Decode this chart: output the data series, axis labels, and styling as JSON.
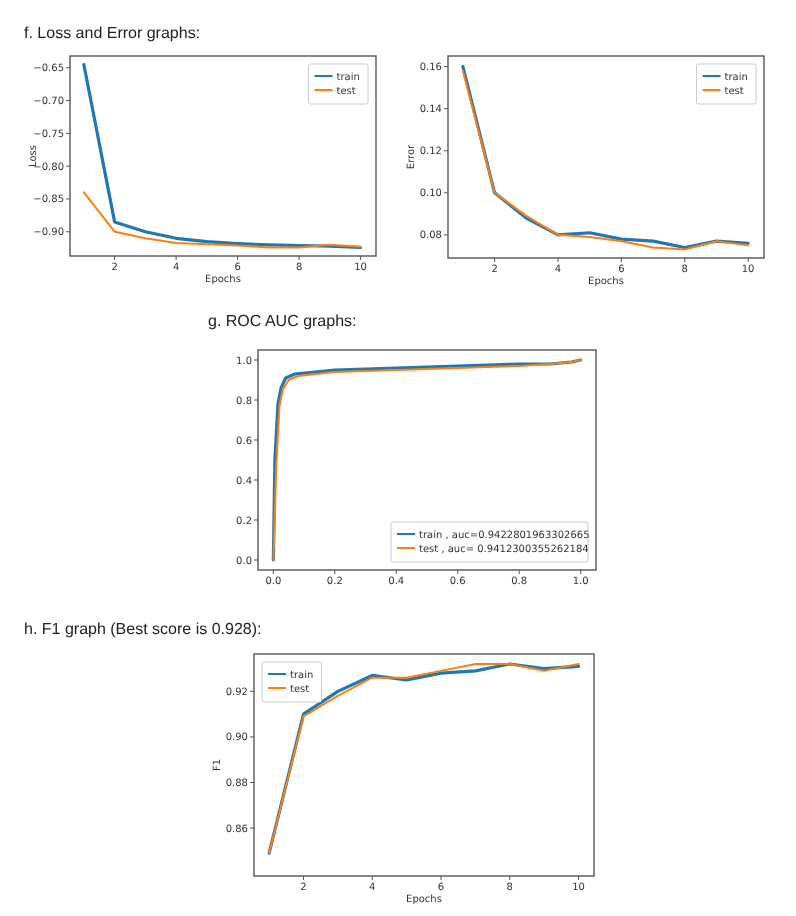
{
  "chart_data": [
    {
      "type": "line",
      "title": "f. Loss and Error graphs:",
      "xlabel": "Epochs",
      "ylabel": "Loss",
      "x": [
        1,
        2,
        3,
        4,
        5,
        6,
        7,
        8,
        9,
        10
      ],
      "xlim": [
        0.55,
        10.5
      ],
      "xticks": [
        2,
        4,
        6,
        8,
        10
      ],
      "ylim": [
        -0.937,
        -0.632
      ],
      "yticks": [
        {
          "value": -0.65,
          "label": "−0.65"
        },
        {
          "value": -0.7,
          "label": "−0.70"
        },
        {
          "value": -0.75,
          "label": "−0.75"
        },
        {
          "value": -0.8,
          "label": "−0.80"
        },
        {
          "value": -0.85,
          "label": "−0.85"
        },
        {
          "value": -0.9,
          "label": "−0.90"
        }
      ],
      "legend": "top right",
      "series": [
        {
          "name": "train",
          "color": "#1f77b4",
          "values": [
            -0.645,
            -0.885,
            -0.9,
            -0.91,
            -0.915,
            -0.918,
            -0.92,
            -0.921,
            -0.922,
            -0.924
          ]
        },
        {
          "name": "test",
          "color": "#ff7f0e",
          "values": [
            -0.84,
            -0.9,
            -0.91,
            -0.917,
            -0.919,
            -0.921,
            -0.924,
            -0.924,
            -0.92,
            -0.923
          ]
        }
      ]
    },
    {
      "type": "line",
      "xlabel": "Epochs",
      "ylabel": "Error",
      "x": [
        1,
        2,
        3,
        4,
        5,
        6,
        7,
        8,
        9,
        10
      ],
      "xlim": [
        0.53,
        10.5
      ],
      "xticks": [
        2,
        4,
        6,
        8,
        10
      ],
      "ylim": [
        0.069,
        0.165
      ],
      "yticks": [
        {
          "value": 0.08,
          "label": "0.08"
        },
        {
          "value": 0.1,
          "label": "0.10"
        },
        {
          "value": 0.12,
          "label": "0.12"
        },
        {
          "value": 0.14,
          "label": "0.14"
        },
        {
          "value": 0.16,
          "label": "0.16"
        }
      ],
      "legend": "top right",
      "series": [
        {
          "name": "train",
          "color": "#1f77b4",
          "values": [
            0.16,
            0.1,
            0.088,
            0.08,
            0.081,
            0.078,
            0.077,
            0.074,
            0.077,
            0.076
          ]
        },
        {
          "name": "test",
          "color": "#ff7f0e",
          "values": [
            0.158,
            0.1,
            0.089,
            0.08,
            0.079,
            0.077,
            0.074,
            0.073,
            0.077,
            0.075
          ]
        }
      ]
    },
    {
      "type": "line",
      "title": "g. ROC AUC graphs:",
      "xlim": [
        -0.05,
        1.05
      ],
      "xticks": [
        {
          "value": 0,
          "label": "0.0"
        },
        {
          "value": 0.2,
          "label": "0.2"
        },
        {
          "value": 0.4,
          "label": "0.4"
        },
        {
          "value": 0.6,
          "label": "0.6"
        },
        {
          "value": 0.8,
          "label": "0.8"
        },
        {
          "value": 1,
          "label": "1.0"
        }
      ],
      "ylim": [
        -0.05,
        1.05
      ],
      "yticks": [
        {
          "value": 0,
          "label": "0.0"
        },
        {
          "value": 0.2,
          "label": "0.2"
        },
        {
          "value": 0.4,
          "label": "0.4"
        },
        {
          "value": 0.6,
          "label": "0.6"
        },
        {
          "value": 0.8,
          "label": "0.8"
        },
        {
          "value": 1,
          "label": "1.0"
        }
      ],
      "legend": "bottom right",
      "series": [
        {
          "name": "train , auc=0.9422801963302665",
          "color": "#1f77b4",
          "x": [
            0,
            0.005,
            0.015,
            0.025,
            0.04,
            0.07,
            0.2,
            0.4,
            0.6,
            0.8,
            0.9,
            0.97,
            1
          ],
          "values": [
            0,
            0.5,
            0.78,
            0.86,
            0.91,
            0.93,
            0.95,
            0.96,
            0.97,
            0.98,
            0.98,
            0.99,
            1
          ]
        },
        {
          "name": "test , auc= 0.9412300355262184",
          "color": "#ff7f0e",
          "x": [
            0,
            0.01,
            0.02,
            0.03,
            0.05,
            0.08,
            0.2,
            0.4,
            0.6,
            0.8,
            0.9,
            0.97,
            1
          ],
          "values": [
            0,
            0.49,
            0.77,
            0.85,
            0.9,
            0.92,
            0.94,
            0.95,
            0.96,
            0.97,
            0.98,
            0.99,
            1
          ]
        }
      ]
    },
    {
      "type": "line",
      "title": "h. F1 graph (Best score is 0.928):",
      "xlabel": "Epochs",
      "ylabel": "F1",
      "x": [
        1,
        2,
        3,
        4,
        5,
        6,
        7,
        8,
        9,
        10
      ],
      "xlim": [
        0.56,
        10.45
      ],
      "xticks": [
        2,
        4,
        6,
        8,
        10
      ],
      "ylim": [
        0.839,
        0.9364
      ],
      "yticks": [
        0.86,
        0.88,
        {
          "value": 0.9,
          "label": "0.90"
        },
        0.92
      ],
      "legend": "top left",
      "series": [
        {
          "name": "train",
          "color": "#1f77b4",
          "values": [
            0.849,
            0.91,
            0.92,
            0.927,
            0.925,
            0.928,
            0.929,
            0.932,
            0.93,
            0.931
          ]
        },
        {
          "name": "test",
          "color": "#ff7f0e",
          "values": [
            0.849,
            0.909,
            0.918,
            0.926,
            0.926,
            0.929,
            0.932,
            0.932,
            0.929,
            0.932
          ]
        }
      ]
    }
  ]
}
